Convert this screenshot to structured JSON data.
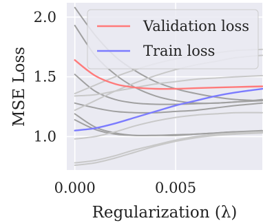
{
  "chart_data": {
    "type": "line",
    "title": "",
    "xlabel": "Regularization (λ)",
    "ylabel": "MSE Loss",
    "xlim": [
      -0.0004,
      0.0093
    ],
    "ylim": [
      0.72,
      2.12
    ],
    "x_ticks": [
      0.0,
      0.005
    ],
    "x_tick_labels": [
      "0.000",
      "0.005"
    ],
    "y_ticks": [
      1.0,
      1.5,
      2.0
    ],
    "y_tick_labels": [
      "1.0",
      "1.5",
      "2.0"
    ],
    "grid": true,
    "background": "#eaeaf2",
    "legend_position": "top-right",
    "x": [
      0.0,
      0.001,
      0.002,
      0.003,
      0.004,
      0.005,
      0.006,
      0.007,
      0.008,
      0.0093
    ],
    "series": [
      {
        "name": "Validation loss",
        "color": "#ff7a7a",
        "values": [
          1.64,
          1.51,
          1.44,
          1.41,
          1.4,
          1.4,
          1.405,
          1.41,
          1.415,
          1.42
        ]
      },
      {
        "name": "Train loss",
        "color": "#7b7bff",
        "values": [
          1.05,
          1.07,
          1.11,
          1.16,
          1.21,
          1.26,
          1.3,
          1.34,
          1.37,
          1.4
        ]
      },
      {
        "color": "#a0a0a0",
        "values": [
          2.08,
          1.85,
          1.67,
          1.55,
          1.46,
          1.4,
          1.36,
          1.33,
          1.31,
          1.3
        ]
      },
      {
        "color": "#a0a0a0",
        "values": [
          1.93,
          1.68,
          1.52,
          1.41,
          1.34,
          1.3,
          1.28,
          1.28,
          1.29,
          1.31
        ]
      },
      {
        "color": "#a0a0a0",
        "values": [
          1.52,
          1.38,
          1.31,
          1.28,
          1.27,
          1.27,
          1.275,
          1.28,
          1.29,
          1.3
        ]
      },
      {
        "color": "#a0a0a0",
        "values": [
          1.28,
          1.24,
          1.21,
          1.2,
          1.2,
          1.21,
          1.22,
          1.24,
          1.26,
          1.28
        ]
      },
      {
        "color": "#a0a0a0",
        "values": [
          1.19,
          1.08,
          1.03,
          1.01,
          1.01,
          1.01,
          1.02,
          1.03,
          1.04,
          1.04
        ]
      },
      {
        "color": "#a0a0a0",
        "values": [
          1.14,
          1.06,
          1.02,
          1.01,
          1.01,
          1.015,
          1.02,
          1.03,
          1.04,
          1.05
        ]
      },
      {
        "color": "#c8c8c8",
        "values": [
          1.36,
          1.43,
          1.5,
          1.56,
          1.61,
          1.65,
          1.68,
          1.7,
          1.72,
          1.73
        ]
      },
      {
        "color": "#c8c8c8",
        "values": [
          1.22,
          1.3,
          1.38,
          1.45,
          1.51,
          1.56,
          1.6,
          1.63,
          1.66,
          1.68
        ]
      },
      {
        "color": "#c8c8c8",
        "values": [
          1.34,
          1.35,
          1.38,
          1.41,
          1.44,
          1.46,
          1.48,
          1.49,
          1.5,
          1.51
        ]
      },
      {
        "color": "#c8c8c8",
        "values": [
          0.98,
          1.0,
          1.04,
          1.09,
          1.13,
          1.16,
          1.18,
          1.19,
          1.2,
          1.2
        ]
      },
      {
        "color": "#c8c8c8",
        "values": [
          0.78,
          0.8,
          0.84,
          0.89,
          0.93,
          0.97,
          1.0,
          1.02,
          1.03,
          1.04
        ]
      },
      {
        "color": "#c8c8c8",
        "values": [
          0.76,
          0.78,
          0.82,
          0.87,
          0.92,
          0.96,
          0.99,
          1.01,
          1.02,
          1.03
        ]
      }
    ]
  }
}
